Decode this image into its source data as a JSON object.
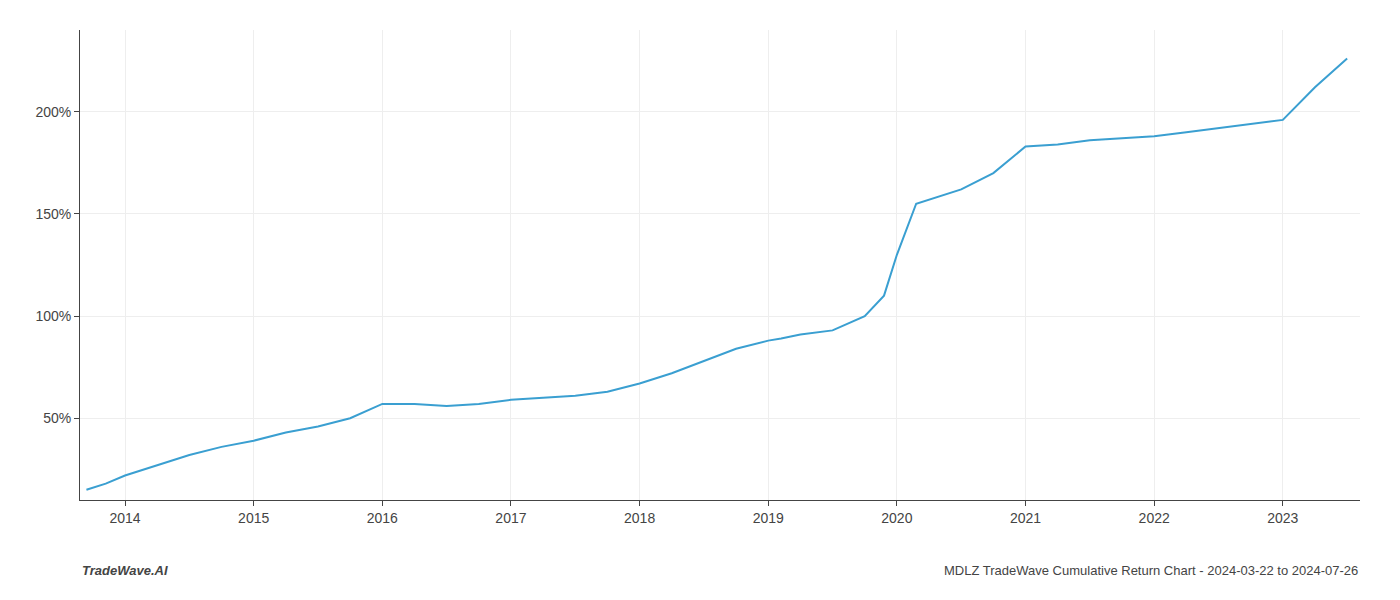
{
  "chart_data": {
    "type": "line",
    "x": [
      2013.7,
      2013.85,
      2014.0,
      2014.25,
      2014.5,
      2014.75,
      2015.0,
      2015.25,
      2015.5,
      2015.75,
      2016.0,
      2016.25,
      2016.5,
      2016.75,
      2017.0,
      2017.25,
      2017.5,
      2017.75,
      2018.0,
      2018.25,
      2018.5,
      2018.75,
      2019.0,
      2019.1,
      2019.25,
      2019.5,
      2019.75,
      2019.9,
      2020.0,
      2020.15,
      2020.5,
      2020.75,
      2021.0,
      2021.25,
      2021.5,
      2021.75,
      2022.0,
      2022.25,
      2022.5,
      2022.75,
      2023.0,
      2023.25,
      2023.5
    ],
    "values": [
      15,
      18,
      22,
      27,
      32,
      36,
      39,
      43,
      46,
      50,
      57,
      57,
      56,
      57,
      59,
      60,
      61,
      63,
      67,
      72,
      78,
      84,
      88,
      89,
      91,
      93,
      100,
      110,
      130,
      155,
      162,
      170,
      183,
      184,
      186,
      187,
      188,
      190,
      192,
      194,
      196,
      212,
      226
    ],
    "color": "#3a9fd1",
    "xlim": [
      2013.65,
      2023.6
    ],
    "ylim": [
      10,
      240
    ],
    "xticks": [
      2014,
      2015,
      2016,
      2017,
      2018,
      2019,
      2020,
      2021,
      2022,
      2023
    ],
    "yticks": [
      {
        "value": 50,
        "label": "50%"
      },
      {
        "value": 100,
        "label": "100%"
      },
      {
        "value": 150,
        "label": "150%"
      },
      {
        "value": 200,
        "label": "200%"
      }
    ],
    "grid": true,
    "annotations": [
      "TradeWave.AI",
      "MDLZ TradeWave Cumulative Return Chart - 2024-03-22 to 2024-07-26"
    ]
  }
}
